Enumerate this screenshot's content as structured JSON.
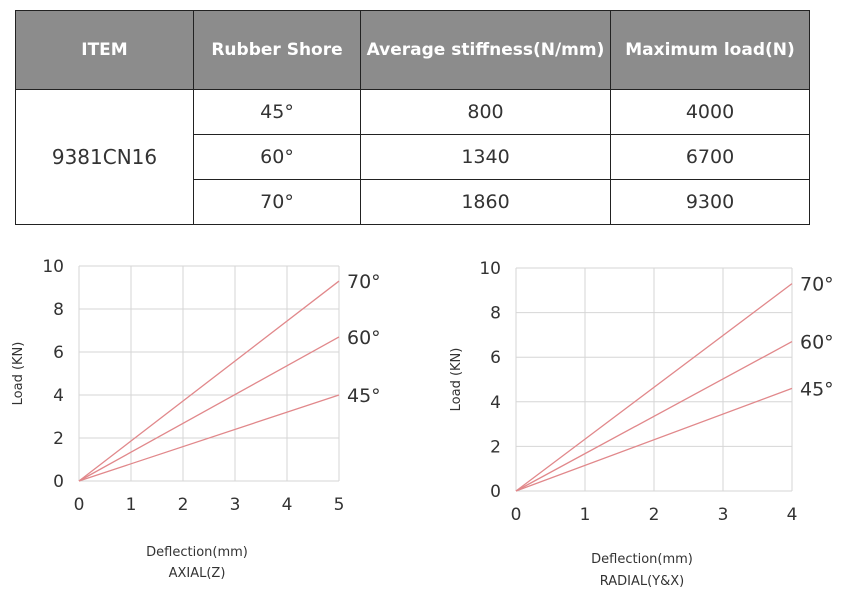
{
  "table": {
    "headers": [
      "ITEM",
      "Rubber Shore",
      "Average stiffness(N/mm)",
      "Maximum load(N)"
    ],
    "item": "9381CN16",
    "rows": [
      {
        "shore": "45°",
        "stiffness": "800",
        "max_load": "4000"
      },
      {
        "shore": "60°",
        "stiffness": "1340",
        "max_load": "6700"
      },
      {
        "shore": "70°",
        "stiffness": "1860",
        "max_load": "9300"
      }
    ]
  },
  "colors": {
    "header_bg": "#8c8c8c",
    "header_text": "#ffffff",
    "series_line": "#e1888b",
    "grid": "#d6d6d6"
  },
  "chart_data": [
    {
      "type": "line",
      "title": "",
      "xlabel": "Deflection(mm)",
      "subtitle": "AXIAL(Z)",
      "ylabel": "Load (KN)",
      "xlim": [
        0,
        5
      ],
      "ylim": [
        0,
        10
      ],
      "xticks": [
        "0",
        "1",
        "2",
        "3",
        "4",
        "5"
      ],
      "yticks": [
        "0",
        "2",
        "4",
        "6",
        "8",
        "10"
      ],
      "grid": true,
      "series": [
        {
          "name": "70°",
          "x": [
            0,
            5
          ],
          "y": [
            0,
            9.3
          ]
        },
        {
          "name": "60°",
          "x": [
            0,
            5
          ],
          "y": [
            0,
            6.7
          ]
        },
        {
          "name": "45°",
          "x": [
            0,
            5
          ],
          "y": [
            0,
            4.0
          ]
        }
      ]
    },
    {
      "type": "line",
      "title": "",
      "xlabel": "Deflection(mm)",
      "subtitle": "RADIAL(Y&X)",
      "ylabel": "Load (KN)",
      "xlim": [
        0,
        4
      ],
      "ylim": [
        0,
        10
      ],
      "xticks": [
        "0",
        "1",
        "2",
        "3",
        "4"
      ],
      "yticks": [
        "0",
        "2",
        "4",
        "6",
        "8",
        "10"
      ],
      "grid": true,
      "series": [
        {
          "name": "70°",
          "x": [
            0,
            4
          ],
          "y": [
            0,
            9.3
          ]
        },
        {
          "name": "60°",
          "x": [
            0,
            4
          ],
          "y": [
            0,
            6.7
          ]
        },
        {
          "name": "45°",
          "x": [
            0,
            4
          ],
          "y": [
            0,
            4.6
          ]
        }
      ]
    }
  ]
}
